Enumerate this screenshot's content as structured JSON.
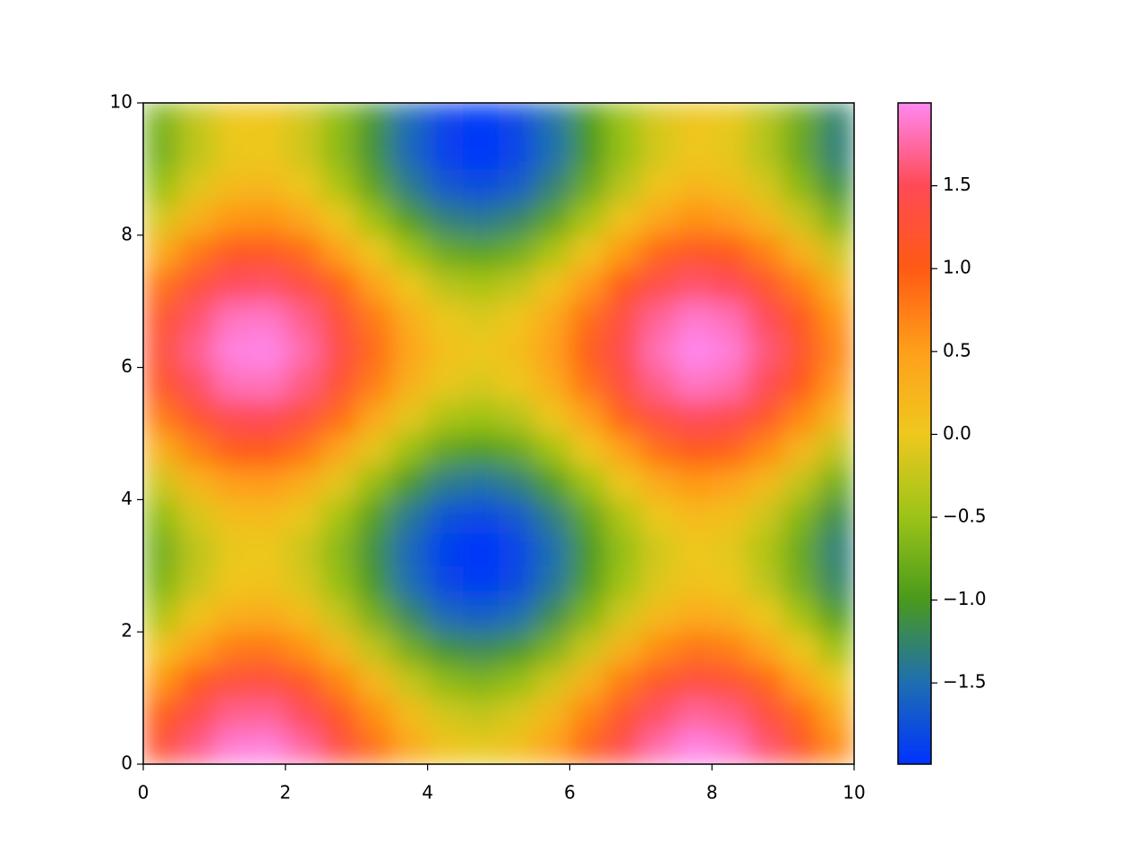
{
  "chart_data": {
    "type": "heatmap",
    "xlim": [
      0,
      10
    ],
    "ylim": [
      0,
      10
    ],
    "xticks": [
      0,
      2,
      4,
      6,
      8,
      10
    ],
    "yticks": [
      0,
      2,
      4,
      6,
      8,
      10
    ],
    "clim": [
      -1.99,
      2.0
    ],
    "cticks": [
      {
        "value": -1.5,
        "label": "−1.5"
      },
      {
        "value": -1,
        "label": "−1.0"
      },
      {
        "value": -0.5,
        "label": "−0.5"
      },
      {
        "value": 0,
        "label": "0.0"
      },
      0.5,
      {
        "value": 1,
        "label": "1.0"
      },
      1.5
    ],
    "colors": [
      "#0033ff",
      "#1f6fb0",
      "#4a9a1c",
      "#9cc418",
      "#efc81e",
      "#ff9f1a",
      "#ff5a14",
      "#ff4a55",
      "#ff88f0"
    ],
    "z": [
      [
        1.22,
        1.65,
        1.92,
        1.95,
        1.75,
        1.35,
        0.86,
        0.4,
        0.07,
        -0.03,
        0.11,
        0.46,
        0.94,
        1.42,
        1.79,
        1.97,
        1.89,
        1.59,
        1.14,
        0.65
      ],
      [
        0.98,
        1.41,
        1.68,
        1.71,
        1.51,
        1.11,
        0.62,
        0.16,
        -0.17,
        -0.27,
        -0.13,
        0.22,
        0.7,
        1.18,
        1.55,
        1.73,
        1.65,
        1.35,
        0.9,
        0.41
      ],
      [
        0.57,
        1.0,
        1.27,
        1.3,
        1.1,
        0.7,
        0.21,
        -0.25,
        -0.58,
        -0.68,
        -0.54,
        -0.19,
        0.29,
        0.77,
        1.14,
        1.32,
        1.24,
        0.94,
        0.49,
        0.0
      ],
      [
        0.07,
        0.5,
        0.77,
        0.8,
        0.6,
        0.2,
        -0.29,
        -0.75,
        -1.08,
        -1.18,
        -1.04,
        -0.69,
        -0.21,
        0.27,
        0.64,
        0.82,
        0.74,
        0.44,
        -0.01,
        -0.5
      ],
      [
        -0.38,
        0.05,
        0.32,
        0.35,
        0.15,
        -0.25,
        -0.74,
        -1.2,
        -1.53,
        -1.63,
        -1.49,
        -1.14,
        -0.66,
        -0.18,
        0.19,
        0.37,
        0.29,
        -0.01,
        -0.46,
        -0.95
      ],
      [
        -0.67,
        -0.24,
        0.03,
        0.06,
        -0.14,
        -0.54,
        -1.03,
        -1.49,
        -1.82,
        -1.92,
        -1.78,
        -1.43,
        -0.95,
        -0.47,
        -0.1,
        0.08,
        0.0,
        -0.3,
        -0.75,
        -1.24
      ],
      [
        -0.74,
        -0.31,
        -0.04,
        -0.01,
        -0.21,
        -0.61,
        -1.1,
        -1.56,
        -1.89,
        -1.99,
        -1.85,
        -1.5,
        -1.02,
        -0.54,
        -0.17,
        0.01,
        -0.07,
        -0.37,
        -0.82,
        -1.31
      ],
      [
        -0.57,
        -0.14,
        0.13,
        0.16,
        -0.04,
        -0.44,
        -0.93,
        -1.39,
        -1.72,
        -1.82,
        -1.68,
        -1.33,
        -0.85,
        -0.37,
        0.0,
        0.18,
        0.1,
        -0.2,
        -0.65,
        -1.14
      ],
      [
        -0.2,
        0.23,
        0.5,
        0.53,
        0.33,
        -0.07,
        -0.56,
        -1.02,
        -1.35,
        -1.45,
        -1.31,
        -0.96,
        -0.48,
        0.0,
        0.37,
        0.55,
        0.47,
        0.17,
        -0.28,
        -0.77
      ],
      [
        0.29,
        0.72,
        0.99,
        1.02,
        0.82,
        0.42,
        -0.07,
        -0.53,
        -0.86,
        -0.96,
        -0.82,
        -0.47,
        0.01,
        0.49,
        0.86,
        1.04,
        0.96,
        0.66,
        0.21,
        -0.28
      ],
      [
        0.76,
        1.19,
        1.46,
        1.49,
        1.29,
        0.89,
        0.4,
        -0.06,
        -0.39,
        -0.49,
        -0.35,
        0.0,
        0.48,
        0.96,
        1.33,
        1.51,
        1.43,
        1.13,
        0.68,
        0.19
      ],
      [
        1.11,
        1.54,
        1.81,
        1.84,
        1.64,
        1.24,
        0.75,
        0.29,
        -0.04,
        -0.14,
        0.0,
        0.35,
        0.83,
        1.31,
        1.68,
        1.86,
        1.78,
        1.48,
        1.03,
        0.54
      ],
      [
        1.25,
        1.68,
        1.95,
        1.98,
        1.78,
        1.38,
        0.89,
        0.43,
        0.1,
        0.0,
        0.14,
        0.49,
        0.97,
        1.45,
        1.82,
        2.0,
        1.92,
        1.62,
        1.17,
        0.68
      ],
      [
        1.14,
        1.57,
        1.84,
        1.87,
        1.67,
        1.27,
        0.78,
        0.32,
        -0.01,
        -0.11,
        0.03,
        0.38,
        0.86,
        1.34,
        1.71,
        1.89,
        1.81,
        1.51,
        1.06,
        0.57
      ],
      [
        0.82,
        1.25,
        1.52,
        1.55,
        1.35,
        0.95,
        0.46,
        0.0,
        -0.33,
        -0.43,
        -0.29,
        0.06,
        0.54,
        1.02,
        1.39,
        1.57,
        1.49,
        1.19,
        0.74,
        0.25
      ],
      [
        0.35,
        0.78,
        1.05,
        1.08,
        0.88,
        0.48,
        -0.01,
        -0.47,
        -0.8,
        -0.9,
        -0.76,
        -0.41,
        0.07,
        0.55,
        0.92,
        1.1,
        1.02,
        0.72,
        0.27,
        -0.22
      ],
      [
        -0.14,
        0.29,
        0.56,
        0.59,
        0.39,
        -0.01,
        -0.5,
        -0.96,
        -1.29,
        -1.39,
        -1.25,
        -0.9,
        -0.42,
        0.06,
        0.43,
        0.61,
        0.53,
        0.23,
        -0.22,
        -0.71
      ],
      [
        -0.53,
        -0.1,
        0.17,
        0.2,
        0.0,
        -0.4,
        -0.89,
        -1.35,
        -1.68,
        -1.78,
        -1.64,
        -1.29,
        -0.81,
        -0.33,
        0.04,
        0.22,
        0.14,
        -0.16,
        -0.61,
        -1.1
      ],
      [
        -0.73,
        -0.3,
        -0.03,
        0.0,
        -0.2,
        -0.6,
        -1.09,
        -1.55,
        -1.88,
        -1.98,
        -1.84,
        -1.49,
        -1.01,
        -0.53,
        -0.16,
        0.02,
        -0.06,
        -0.36,
        -0.81,
        -1.3
      ],
      [
        -0.7,
        -0.27,
        0.0,
        0.03,
        -0.17,
        -0.57,
        -1.06,
        -1.52,
        -1.85,
        -1.95,
        -1.81,
        -1.46,
        -0.98,
        -0.5,
        -0.13,
        0.05,
        -0.03,
        -0.33,
        -0.78,
        -1.27
      ]
    ]
  }
}
